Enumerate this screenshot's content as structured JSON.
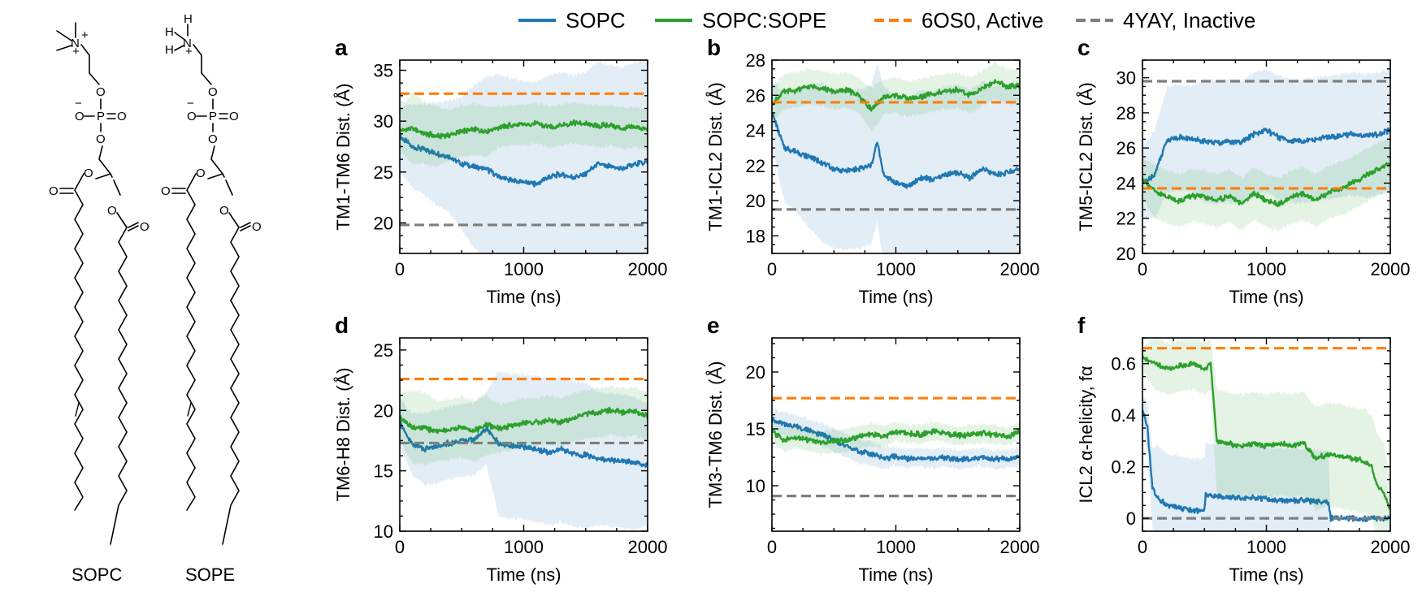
{
  "molecules": [
    {
      "name": "SOPC"
    },
    {
      "name": "SOPE"
    }
  ],
  "legend": [
    {
      "label": "SOPC",
      "color": "#1f77b4",
      "style": "solid"
    },
    {
      "label": "SOPC:SOPE",
      "color": "#2ca02c",
      "style": "solid"
    },
    {
      "label": "6OS0, Active",
      "color": "#ff7f0e",
      "style": "dashed"
    },
    {
      "label": "4YAY, Inactive",
      "color": "#7f7f7f",
      "style": "dashed"
    }
  ],
  "chart_data": [
    {
      "panel": "a",
      "type": "line",
      "xlabel": "Time (ns)",
      "ylabel": "TM1-TM6 Dist. (Å)",
      "xlim": [
        0,
        2000
      ],
      "ylim": [
        17,
        36
      ],
      "xticks": [
        0,
        1000,
        2000
      ],
      "yticks": [
        20,
        25,
        30,
        35
      ],
      "references": [
        {
          "name": "6OS0, Active",
          "y": 32.7
        },
        {
          "name": "4YAY, Inactive",
          "y": 19.8
        }
      ],
      "series": [
        {
          "name": "SOPC",
          "x": [
            0,
            100,
            200,
            300,
            400,
            500,
            600,
            700,
            800,
            900,
            1000,
            1100,
            1200,
            1300,
            1400,
            1500,
            1600,
            1700,
            1800,
            1900,
            2000
          ],
          "y": [
            28.5,
            27.5,
            27.2,
            26.8,
            26.5,
            25.8,
            25.5,
            25.3,
            24.5,
            24.2,
            24.0,
            23.8,
            24.5,
            24.8,
            24.5,
            24.8,
            25.8,
            25.5,
            25.3,
            25.8,
            26.0
          ],
          "band": [
            3.5,
            4.0,
            4.5,
            5.0,
            5.5,
            6.5,
            8.0,
            9.0,
            10.0,
            10.0,
            10.0,
            10.0,
            10.0,
            10.0,
            10.0,
            10.0,
            10.0,
            10.0,
            10.0,
            10.0,
            10.0
          ]
        },
        {
          "name": "SOPC:SOPE",
          "x": [
            0,
            100,
            200,
            300,
            400,
            500,
            600,
            700,
            800,
            900,
            1000,
            1100,
            1200,
            1300,
            1400,
            1500,
            1600,
            1700,
            1800,
            1900,
            2000
          ],
          "y": [
            29.0,
            29.3,
            28.8,
            28.5,
            28.6,
            29.0,
            29.2,
            29.0,
            29.4,
            29.6,
            29.6,
            29.8,
            29.4,
            29.6,
            29.8,
            29.7,
            29.5,
            29.6,
            29.3,
            29.4,
            29.2
          ],
          "band": [
            2.0,
            3.5,
            3.0,
            3.0,
            2.5,
            2.5,
            2.5,
            2.5,
            2.0,
            2.0,
            2.0,
            2.0,
            2.0,
            2.0,
            2.0,
            2.0,
            2.0,
            2.0,
            2.0,
            2.0,
            2.0
          ]
        }
      ]
    },
    {
      "panel": "b",
      "type": "line",
      "xlabel": "Time (ns)",
      "ylabel": "TM1-ICL2 Dist. (Å)",
      "xlim": [
        0,
        2000
      ],
      "ylim": [
        17,
        28
      ],
      "xticks": [
        0,
        1000,
        2000
      ],
      "yticks": [
        18,
        20,
        22,
        24,
        26,
        28
      ],
      "references": [
        {
          "name": "6OS0, Active",
          "y": 25.6
        },
        {
          "name": "4YAY, Inactive",
          "y": 19.5
        }
      ],
      "series": [
        {
          "name": "SOPC",
          "x": [
            0,
            100,
            200,
            300,
            400,
            500,
            600,
            700,
            800,
            850,
            900,
            1000,
            1100,
            1200,
            1300,
            1400,
            1500,
            1600,
            1700,
            1800,
            1900,
            2000
          ],
          "y": [
            25.0,
            23.0,
            22.8,
            22.5,
            22.2,
            21.8,
            21.7,
            21.8,
            22.0,
            23.3,
            21.5,
            21.0,
            20.8,
            21.3,
            21.2,
            21.5,
            21.6,
            21.3,
            21.8,
            21.5,
            21.6,
            21.8
          ],
          "band": [
            2.0,
            3.0,
            3.5,
            4.0,
            4.5,
            4.5,
            4.5,
            4.5,
            4.5,
            4.5,
            5.0,
            5.0,
            5.0,
            5.0,
            5.0,
            5.0,
            5.0,
            5.0,
            5.0,
            5.0,
            5.0,
            5.0
          ]
        },
        {
          "name": "SOPC:SOPE",
          "x": [
            0,
            100,
            200,
            300,
            400,
            500,
            600,
            700,
            800,
            850,
            900,
            1000,
            1100,
            1200,
            1300,
            1400,
            1500,
            1600,
            1700,
            1800,
            1900,
            2000
          ],
          "y": [
            25.5,
            26.2,
            26.3,
            26.5,
            26.4,
            26.2,
            26.3,
            26.0,
            25.2,
            25.5,
            25.9,
            26.0,
            25.8,
            25.9,
            26.1,
            26.2,
            26.3,
            26.0,
            26.4,
            26.8,
            26.5,
            26.5
          ],
          "band": [
            1.0,
            1.0,
            1.0,
            1.0,
            1.0,
            1.0,
            1.0,
            1.0,
            1.2,
            1.2,
            1.0,
            1.0,
            1.0,
            1.0,
            1.0,
            1.0,
            1.0,
            1.0,
            1.0,
            1.0,
            1.0,
            1.0
          ]
        }
      ]
    },
    {
      "panel": "c",
      "type": "line",
      "xlabel": "Time (ns)",
      "ylabel": "TM5-ICL2 Dist. (Å)",
      "xlim": [
        0,
        2000
      ],
      "ylim": [
        20,
        31
      ],
      "xticks": [
        0,
        1000,
        2000
      ],
      "yticks": [
        20,
        22,
        24,
        26,
        28,
        30
      ],
      "references": [
        {
          "name": "6OS0, Active",
          "y": 23.7
        },
        {
          "name": "4YAY, Inactive",
          "y": 29.8
        }
      ],
      "series": [
        {
          "name": "SOPC",
          "x": [
            0,
            100,
            200,
            300,
            400,
            500,
            600,
            700,
            800,
            900,
            1000,
            1100,
            1200,
            1300,
            1400,
            1500,
            1600,
            1700,
            1800,
            1900,
            2000
          ],
          "y": [
            24.0,
            24.5,
            26.5,
            26.6,
            26.5,
            26.4,
            26.3,
            26.4,
            26.3,
            26.8,
            27.0,
            26.6,
            26.4,
            26.4,
            26.5,
            26.6,
            26.7,
            26.8,
            26.7,
            26.8,
            27.0
          ],
          "band": [
            2.0,
            2.5,
            3.0,
            3.0,
            3.0,
            3.5,
            3.5,
            3.5,
            3.5,
            3.5,
            3.5,
            3.5,
            3.5,
            3.5,
            3.5,
            3.5,
            3.5,
            3.5,
            3.5,
            3.5,
            3.5
          ]
        },
        {
          "name": "SOPC:SOPE",
          "x": [
            0,
            100,
            200,
            300,
            400,
            500,
            600,
            700,
            800,
            900,
            1000,
            1100,
            1200,
            1300,
            1400,
            1500,
            1600,
            1700,
            1800,
            1900,
            2000
          ],
          "y": [
            24.3,
            23.5,
            23.2,
            23.0,
            23.3,
            23.2,
            23.0,
            23.3,
            22.8,
            23.4,
            23.0,
            22.8,
            23.2,
            23.4,
            23.0,
            23.5,
            23.7,
            24.0,
            24.4,
            24.8,
            25.1
          ],
          "band": [
            1.2,
            1.5,
            1.5,
            1.5,
            1.5,
            1.5,
            1.5,
            1.5,
            1.5,
            1.5,
            1.5,
            1.5,
            1.5,
            1.5,
            1.5,
            1.5,
            1.5,
            1.5,
            1.5,
            1.5,
            1.5
          ]
        }
      ]
    },
    {
      "panel": "d",
      "type": "line",
      "xlabel": "Time (ns)",
      "ylabel": "TM6-H8 Dist. (Å)",
      "xlim": [
        0,
        2000
      ],
      "ylim": [
        10,
        26
      ],
      "xticks": [
        0,
        1000,
        2000
      ],
      "yticks": [
        10,
        15,
        20,
        25
      ],
      "references": [
        {
          "name": "6OS0, Active",
          "y": 22.6
        },
        {
          "name": "4YAY, Inactive",
          "y": 17.3
        }
      ],
      "series": [
        {
          "name": "SOPC",
          "x": [
            0,
            100,
            200,
            300,
            400,
            500,
            600,
            700,
            800,
            900,
            1000,
            1100,
            1200,
            1300,
            1400,
            1500,
            1600,
            1700,
            1800,
            1900,
            2000
          ],
          "y": [
            19.0,
            17.2,
            16.8,
            17.0,
            17.3,
            17.5,
            17.6,
            18.5,
            17.2,
            17.0,
            17.0,
            16.8,
            16.5,
            16.8,
            16.4,
            16.3,
            16.0,
            15.9,
            15.8,
            15.6,
            15.5
          ],
          "band": [
            2.0,
            2.5,
            3.0,
            3.0,
            3.0,
            3.0,
            3.0,
            3.0,
            6.0,
            6.0,
            6.0,
            6.0,
            6.0,
            6.0,
            6.0,
            6.0,
            5.5,
            5.5,
            5.5,
            5.5,
            5.0
          ]
        },
        {
          "name": "SOPC:SOPE",
          "x": [
            0,
            100,
            200,
            300,
            400,
            500,
            600,
            700,
            800,
            900,
            1000,
            1100,
            1200,
            1300,
            1400,
            1500,
            1600,
            1700,
            1800,
            1900,
            2000
          ],
          "y": [
            19.5,
            18.6,
            18.5,
            18.3,
            18.4,
            18.6,
            18.3,
            18.8,
            18.5,
            18.7,
            19.0,
            19.0,
            19.2,
            19.0,
            19.4,
            19.7,
            19.8,
            20.0,
            19.8,
            19.9,
            19.5
          ],
          "band": [
            2.0,
            3.0,
            3.0,
            2.5,
            2.5,
            2.5,
            2.5,
            2.5,
            2.0,
            2.0,
            2.0,
            2.0,
            2.0,
            2.0,
            2.0,
            2.0,
            2.0,
            2.0,
            2.0,
            2.0,
            2.0
          ]
        }
      ]
    },
    {
      "panel": "e",
      "type": "line",
      "xlabel": "Time (ns)",
      "ylabel": "TM3-TM6 Dist. (Å)",
      "xlim": [
        0,
        2000
      ],
      "ylim": [
        6,
        23
      ],
      "xticks": [
        0,
        1000,
        2000
      ],
      "yticks": [
        10,
        15,
        20
      ],
      "references": [
        {
          "name": "6OS0, Active",
          "y": 17.7
        },
        {
          "name": "4YAY, Inactive",
          "y": 9.1
        }
      ],
      "series": [
        {
          "name": "SOPC",
          "x": [
            0,
            100,
            200,
            300,
            400,
            500,
            600,
            700,
            800,
            900,
            1000,
            1100,
            1200,
            1300,
            1400,
            1500,
            1600,
            1700,
            1800,
            1900,
            2000
          ],
          "y": [
            15.8,
            15.4,
            15.2,
            14.8,
            14.5,
            14.0,
            13.5,
            13.0,
            12.8,
            12.4,
            12.6,
            12.4,
            12.5,
            12.4,
            12.5,
            12.3,
            12.4,
            12.5,
            12.3,
            12.4,
            12.5
          ],
          "band": [
            1.0,
            1.0,
            1.0,
            1.0,
            1.0,
            1.0,
            1.0,
            1.0,
            1.0,
            1.0,
            0.8,
            0.8,
            0.8,
            0.8,
            0.8,
            0.8,
            0.8,
            0.8,
            0.8,
            0.8,
            0.8
          ]
        },
        {
          "name": "SOPC:SOPE",
          "x": [
            0,
            100,
            200,
            300,
            400,
            500,
            600,
            700,
            800,
            900,
            1000,
            1100,
            1200,
            1300,
            1400,
            1500,
            1600,
            1700,
            1800,
            1900,
            2000
          ],
          "y": [
            14.8,
            14.0,
            14.3,
            14.0,
            13.8,
            13.9,
            14.0,
            14.3,
            14.5,
            14.3,
            14.8,
            14.6,
            14.5,
            14.8,
            14.6,
            14.4,
            14.5,
            14.6,
            14.5,
            14.3,
            14.8
          ],
          "band": [
            1.0,
            1.0,
            1.0,
            1.0,
            1.0,
            1.0,
            1.0,
            1.0,
            1.0,
            1.0,
            0.8,
            0.8,
            0.8,
            0.8,
            0.8,
            0.8,
            0.8,
            0.8,
            0.8,
            0.8,
            0.8
          ]
        }
      ]
    },
    {
      "panel": "f",
      "type": "line",
      "xlabel": "Time (ns)",
      "ylabel": "ICL2 α-helicity, fα",
      "xlim": [
        0,
        2000
      ],
      "ylim": [
        -0.05,
        0.7
      ],
      "xticks": [
        0,
        1000,
        2000
      ],
      "yticks": [
        0.0,
        0.2,
        0.4,
        0.6
      ],
      "references": [
        {
          "name": "6OS0, Active",
          "y": 0.66
        },
        {
          "name": "4YAY, Inactive",
          "y": 0.0
        }
      ],
      "series": [
        {
          "name": "SOPC",
          "x": [
            0,
            40,
            80,
            120,
            200,
            300,
            400,
            500,
            510,
            700,
            900,
            1100,
            1300,
            1500,
            1520,
            1700,
            1900,
            2000
          ],
          "y": [
            0.42,
            0.35,
            0.12,
            0.08,
            0.05,
            0.04,
            0.03,
            0.03,
            0.09,
            0.08,
            0.08,
            0.07,
            0.07,
            0.06,
            0.0,
            0.0,
            0.0,
            0.0
          ],
          "band": [
            0.05,
            0.1,
            0.15,
            0.2,
            0.2,
            0.2,
            0.2,
            0.2,
            0.2,
            0.2,
            0.2,
            0.2,
            0.2,
            0.2,
            0.0,
            0.0,
            0.0,
            0.0
          ]
        },
        {
          "name": "SOPC:SOPE",
          "x": [
            0,
            100,
            200,
            300,
            400,
            500,
            550,
            600,
            700,
            800,
            900,
            1000,
            1100,
            1200,
            1300,
            1400,
            1500,
            1600,
            1700,
            1800,
            1850,
            1900,
            1950,
            2000
          ],
          "y": [
            0.62,
            0.6,
            0.58,
            0.59,
            0.6,
            0.58,
            0.6,
            0.3,
            0.29,
            0.28,
            0.29,
            0.28,
            0.29,
            0.28,
            0.29,
            0.23,
            0.25,
            0.24,
            0.23,
            0.22,
            0.2,
            0.12,
            0.1,
            0.03
          ],
          "band": [
            0.05,
            0.1,
            0.1,
            0.1,
            0.1,
            0.1,
            0.1,
            0.2,
            0.2,
            0.2,
            0.2,
            0.2,
            0.2,
            0.2,
            0.2,
            0.2,
            0.2,
            0.2,
            0.2,
            0.2,
            0.2,
            0.2,
            0.2,
            0.1
          ]
        }
      ]
    }
  ]
}
